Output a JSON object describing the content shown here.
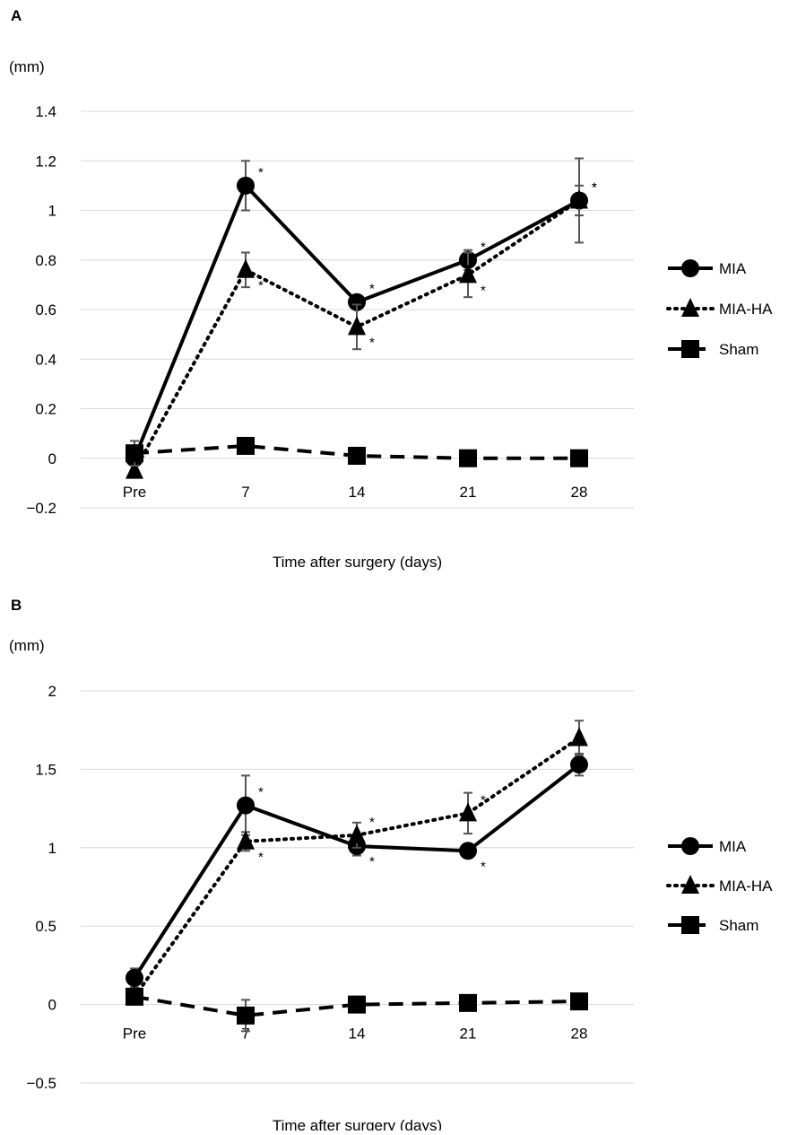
{
  "chart_data": [
    {
      "panel_label": "A",
      "type": "line",
      "unit": "(mm)",
      "xlabel": "Time after surgery (days)",
      "ylabel": "",
      "categories": [
        "Pre",
        "7",
        "14",
        "21",
        "28"
      ],
      "ylim": [
        -0.2,
        1.4
      ],
      "yticks": [
        -0.2,
        0,
        0.2,
        0.4,
        0.6,
        0.8,
        1,
        1.2,
        1.4
      ],
      "ytick_labels": [
        "−0.2",
        "0",
        "0.2",
        "0.4",
        "0.6",
        "0.8",
        "1",
        "1.2",
        "1.4"
      ],
      "grid": true,
      "legend_position": "right",
      "series": [
        {
          "name": "MIA",
          "marker": "circle",
          "line": "solid",
          "color": "#000000",
          "values": [
            0.0,
            1.1,
            0.63,
            0.8,
            1.04
          ],
          "error": [
            0.05,
            0.1,
            0.0,
            0.04,
            0.17
          ],
          "stars": [
            "",
            "*",
            "*",
            "*",
            "*"
          ]
        },
        {
          "name": "MIA-HA",
          "marker": "triangle",
          "line": "dotted",
          "color": "#000000",
          "values": [
            -0.05,
            0.76,
            0.53,
            0.74,
            1.04
          ],
          "error": [
            0.0,
            0.07,
            0.09,
            0.09,
            0.06
          ],
          "stars": [
            "",
            "*",
            "*",
            "*",
            "*"
          ]
        },
        {
          "name": "Sham",
          "marker": "square",
          "line": "dashed",
          "color": "#000000",
          "values": [
            0.02,
            0.05,
            0.01,
            0.0,
            0.0
          ],
          "error": [
            0.05,
            0.03,
            0.0,
            0.0,
            0.0
          ],
          "stars": [
            "",
            "",
            "",
            "",
            ""
          ]
        }
      ]
    },
    {
      "panel_label": "B",
      "type": "line",
      "unit": "(mm)",
      "xlabel": "Time after surgery (days)",
      "ylabel": "",
      "categories": [
        "Pre",
        "7",
        "14",
        "21",
        "28"
      ],
      "ylim": [
        -0.5,
        2
      ],
      "yticks": [
        -0.5,
        0,
        0.5,
        1,
        1.5,
        2
      ],
      "ytick_labels": [
        "−0.5",
        "0",
        "0.5",
        "1",
        "1.5",
        "2"
      ],
      "grid": true,
      "legend_position": "right",
      "series": [
        {
          "name": "MIA",
          "marker": "circle",
          "line": "solid",
          "color": "#000000",
          "values": [
            0.17,
            1.27,
            1.01,
            0.98,
            1.53
          ],
          "error": [
            0.06,
            0.19,
            0.06,
            0.0,
            0.07
          ],
          "stars": [
            "",
            "*",
            "*",
            "*",
            ""
          ]
        },
        {
          "name": "MIA-HA",
          "marker": "triangle",
          "line": "dotted",
          "color": "#000000",
          "values": [
            0.05,
            1.04,
            1.08,
            1.22,
            1.7
          ],
          "error": [
            0.0,
            0.06,
            0.08,
            0.13,
            0.11
          ],
          "stars": [
            "",
            "*",
            "*",
            "*",
            ""
          ]
        },
        {
          "name": "Sham",
          "marker": "square",
          "line": "dashed",
          "color": "#000000",
          "values": [
            0.05,
            -0.07,
            0.0,
            0.01,
            0.02
          ],
          "error": [
            0.05,
            0.1,
            0.0,
            0.0,
            0.0
          ],
          "stars": [
            "",
            "",
            "",
            "",
            ""
          ]
        }
      ]
    }
  ]
}
